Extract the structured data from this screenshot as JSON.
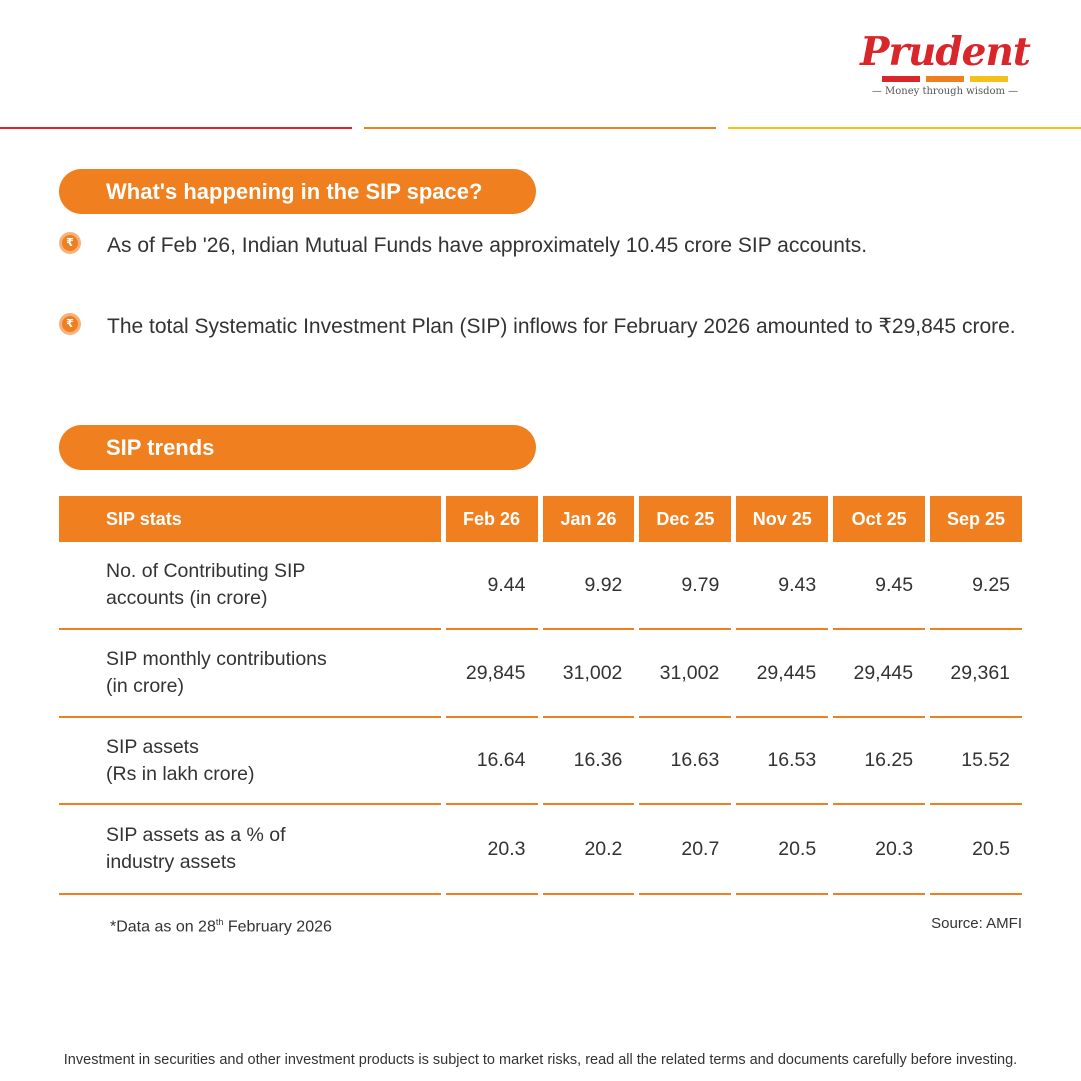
{
  "brand": {
    "name": "Prudent",
    "tagline": "Money through wisdom",
    "colors": {
      "red": "#d8262b",
      "orange": "#ef7f1f",
      "yellow": "#f2c21b"
    }
  },
  "sections": {
    "sip_space": {
      "title": "What's happening in the SIP space?",
      "bullets": [
        "As of Feb '26, Indian Mutual Funds have approximately 10.45 crore SIP accounts.",
        "The total Systematic Investment Plan (SIP) inflows for February 2026 amounted to ₹29,845 crore."
      ],
      "bullet_icon": "rupee-icon"
    },
    "sip_trends": {
      "title": "SIP trends"
    }
  },
  "table": {
    "headers": [
      "SIP stats",
      "Feb 26",
      "Jan 26",
      "Dec 25",
      "Nov 25",
      "Oct 25",
      "Sep 25"
    ],
    "rows": [
      {
        "label": [
          "No. of Contributing SIP",
          "accounts (in crore)"
        ],
        "values": [
          "9.44",
          "9.92",
          "9.79",
          "9.43",
          "9.45",
          "9.25"
        ]
      },
      {
        "label": [
          "SIP monthly contributions",
          "(in crore)"
        ],
        "values": [
          "29,845",
          "31,002",
          "31,002",
          "29,445",
          "29,445",
          "29,361"
        ]
      },
      {
        "label": [
          "SIP assets",
          "(Rs in lakh crore)"
        ],
        "values": [
          "16.64",
          "16.36",
          "16.63",
          "16.53",
          "16.25",
          "15.52"
        ]
      },
      {
        "label": [
          "SIP assets as a % of",
          "industry assets"
        ],
        "values": [
          "20.3",
          "20.2",
          "20.7",
          "20.5",
          "20.3",
          "20.5"
        ]
      }
    ]
  },
  "footnote": {
    "prefix": "*Data as on 28",
    "sup": "th",
    "suffix": " February 2026"
  },
  "source": "Source: AMFI",
  "disclaimer": "Investment in securities and other investment products is subject to market risks, read all the related terms and documents carefully before investing."
}
